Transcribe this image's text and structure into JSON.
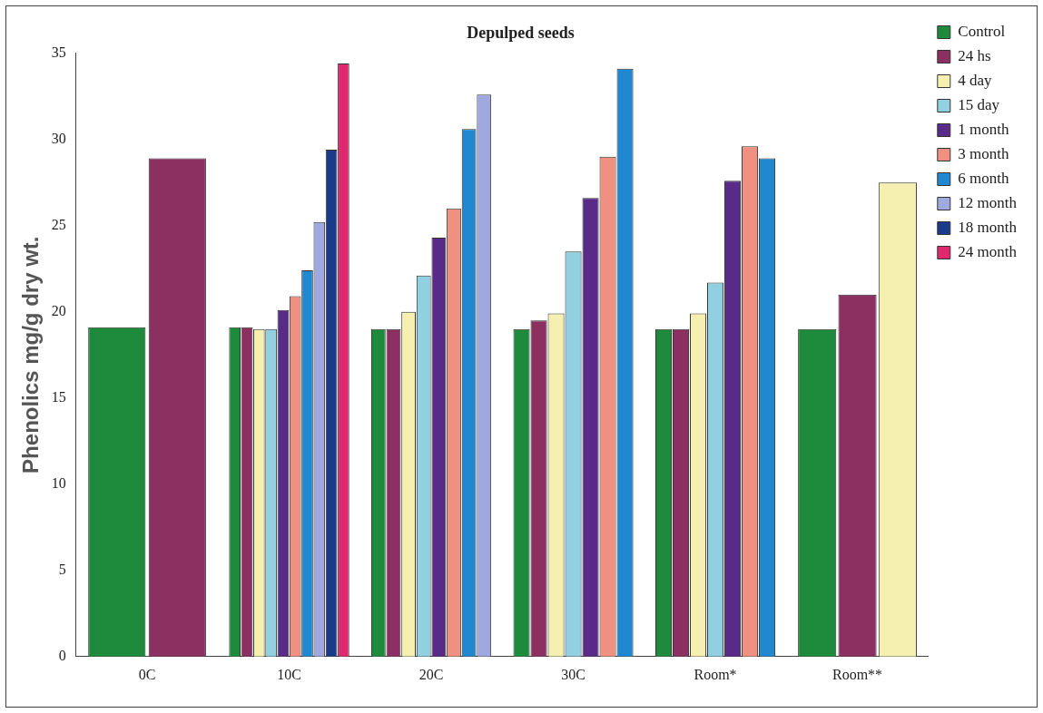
{
  "chart_data": {
    "type": "bar",
    "title": "Depulped seeds",
    "ylabel": "Phenolics mg/g dry wt.",
    "categories": [
      "0C",
      "10C",
      "20C",
      "30C",
      "Room*",
      "Room**"
    ],
    "series": [
      {
        "name": "Control",
        "color": "#1e8a3c",
        "values": [
          19.1,
          19.1,
          19.0,
          19.0,
          19.0,
          19.0
        ]
      },
      {
        "name": "24 hs",
        "color": "#8b3060",
        "values": [
          28.9,
          19.1,
          19.0,
          19.5,
          19.0,
          21.0
        ]
      },
      {
        "name": "4 day",
        "color": "#f5f0b0",
        "values": [
          null,
          19.0,
          20.0,
          19.9,
          19.9,
          27.5
        ]
      },
      {
        "name": "15 day",
        "color": "#90d0e0",
        "values": [
          null,
          19.0,
          22.1,
          23.5,
          21.7,
          null
        ]
      },
      {
        "name": "1 month",
        "color": "#5a2a88",
        "values": [
          null,
          20.1,
          24.3,
          26.6,
          27.6,
          null
        ]
      },
      {
        "name": "3 month",
        "color": "#f09080",
        "values": [
          null,
          20.9,
          26.0,
          29.0,
          29.6,
          null
        ]
      },
      {
        "name": "6 month",
        "color": "#2088d0",
        "values": [
          null,
          22.4,
          30.6,
          34.1,
          28.9,
          null
        ]
      },
      {
        "name": "12 month",
        "color": "#a0a8e0",
        "values": [
          null,
          25.2,
          32.6,
          null,
          null,
          null
        ]
      },
      {
        "name": "18 month",
        "color": "#1a3a8a",
        "values": [
          null,
          29.4,
          null,
          null,
          null,
          null
        ]
      },
      {
        "name": "24 month",
        "color": "#e0286e",
        "values": [
          null,
          34.4,
          null,
          null,
          null,
          null
        ]
      }
    ],
    "ylim": [
      0,
      35
    ],
    "yticks": [
      0,
      5,
      10,
      15,
      20,
      25,
      30,
      35
    ],
    "grid": false,
    "legend": "right"
  }
}
